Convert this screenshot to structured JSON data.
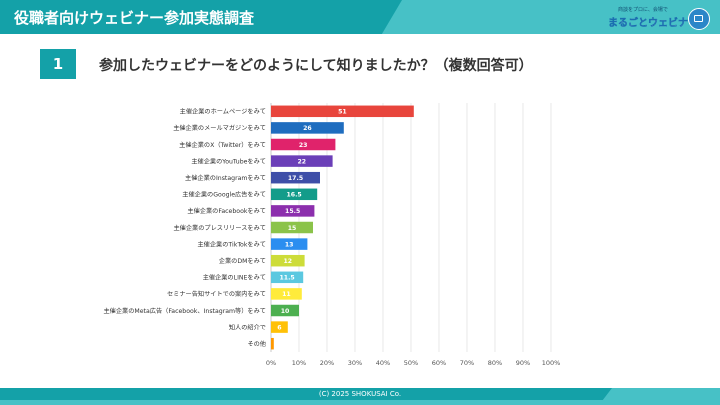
{
  "header": {
    "title": "役職者向けウェビナー参加実態調査"
  },
  "logo": {
    "tagline": "商談をプロに、会場で",
    "name": "まるごとウェビナー",
    "icon": "monitor-icon"
  },
  "question": {
    "number": "1",
    "text": "参加したウェビナーをどのようにして知りましたか？（複数回答可）"
  },
  "footer": {
    "copyright": "(C) 2025 SHOKUSAI Co."
  },
  "chart_data": {
    "type": "bar",
    "orientation": "horizontal",
    "categories": [
      "主催企業のホームページをみて",
      "主催企業のメールマガジンをみて",
      "主催企業のX（Twitter）をみて",
      "主催企業のYouTubeをみて",
      "主催企業のInstagramをみて",
      "主催企業のGoogle広告をみて",
      "主催企業のFacebookをみて",
      "主催企業のプレスリリースをみて",
      "主催企業のTikTokをみて",
      "企業のDMをみて",
      "主催企業のLINEをみて",
      "セミナー告知サイトでの案内をみて",
      "主催企業のMeta広告（Facebook、Instagram等）をみて",
      "知人の紹介で",
      "その他"
    ],
    "values": [
      51,
      26,
      23,
      22,
      17.5,
      16.5,
      15.5,
      15,
      13,
      12,
      11.5,
      11,
      10,
      6,
      1
    ],
    "data_labels": [
      "51",
      "26",
      "23",
      "22",
      "17.5",
      "16.5",
      "15.5",
      "15",
      "13",
      "12",
      "11.5",
      "11",
      "10",
      "6",
      ""
    ],
    "colors": [
      "#e8453c",
      "#1f6dbf",
      "#e0236b",
      "#6b3fb8",
      "#3f4fa8",
      "#139c8a",
      "#8c2fad",
      "#8bc34a",
      "#2b8ef0",
      "#cddc39",
      "#5bc8e0",
      "#ffeb3b",
      "#4caf50",
      "#ffc107",
      "#ff9800"
    ],
    "label_color_dark": "#333333",
    "label_color_light": "#ffffff",
    "xlim": [
      0,
      100
    ],
    "xticks": [
      "0%",
      "10%",
      "20%",
      "30%",
      "40%",
      "50%",
      "60%",
      "70%",
      "80%",
      "90%",
      "100%"
    ],
    "grid": true
  }
}
